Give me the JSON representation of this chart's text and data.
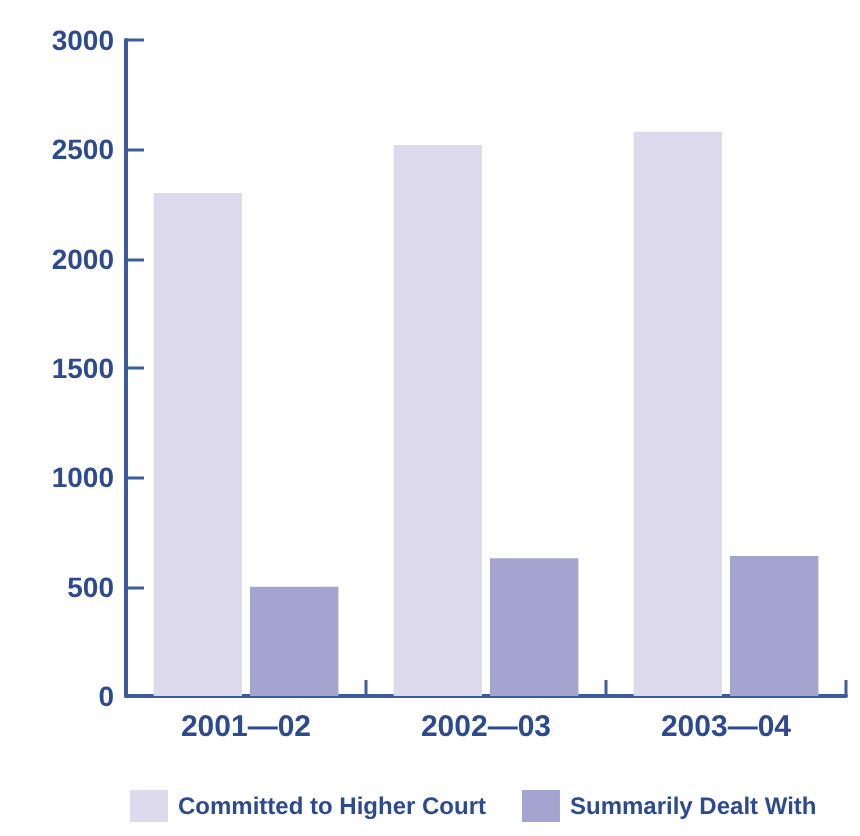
{
  "chart_data": {
    "type": "bar",
    "categories": [
      "2001—02",
      "2002—03",
      "2003—04"
    ],
    "series": [
      {
        "name": "Committed to Higher Court",
        "color": "#dcdaec",
        "values": [
          2300,
          2520,
          2580
        ]
      },
      {
        "name": "Summarily Dealt With",
        "color": "#a3a4d0",
        "values": [
          500,
          630,
          640
        ]
      }
    ],
    "ylim": [
      0,
      3000
    ],
    "yticks": [
      0,
      500,
      1000,
      1500,
      2000,
      2500,
      3000
    ],
    "legend": "bottom"
  }
}
